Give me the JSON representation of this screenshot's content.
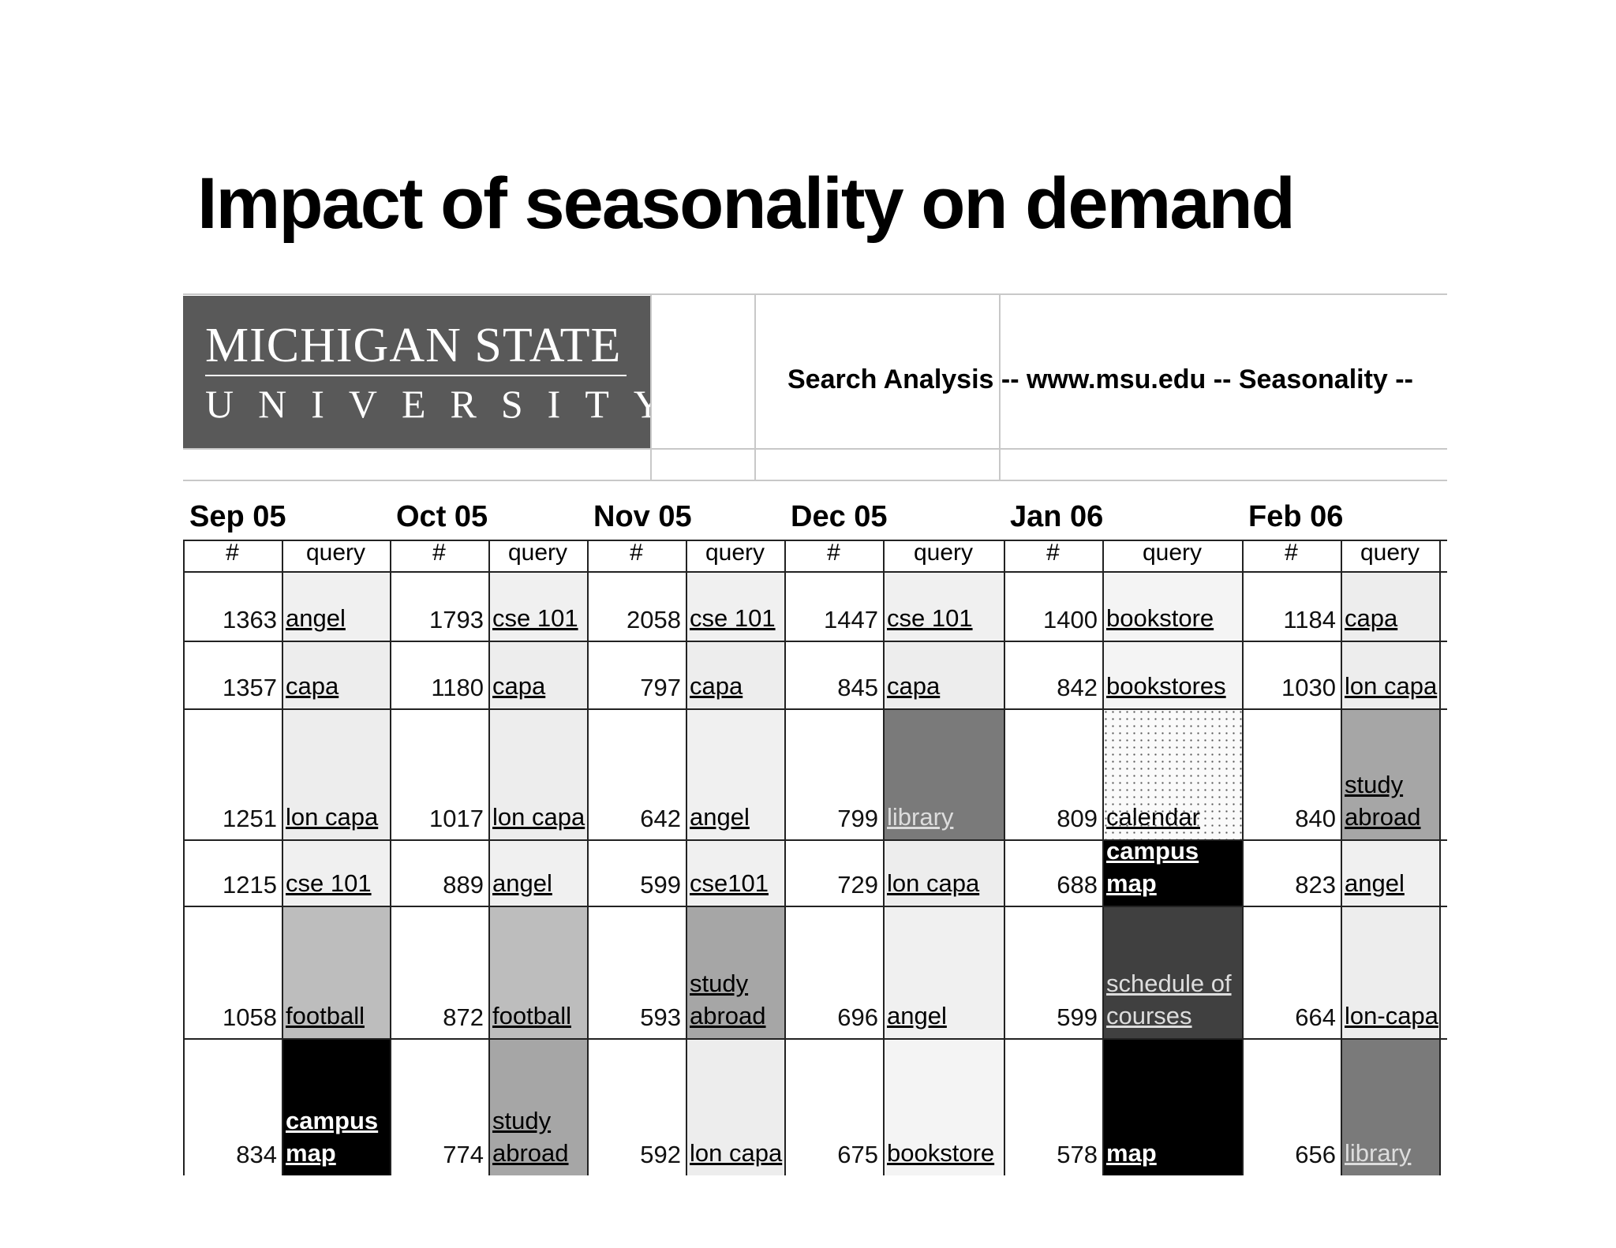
{
  "slide": {
    "title": "Impact of seasonality on demand"
  },
  "sheet": {
    "logo": {
      "line1": "MICHIGAN STATE",
      "line2": "UNIVERSITY"
    },
    "analysis_title": "Search Analysis -- www.msu.edu -- Seasonality --",
    "months": [
      "Sep  05",
      "Oct 05",
      "Nov 05",
      "Dec 05",
      "Jan 06",
      "Feb 06"
    ],
    "col_num_label": "#",
    "col_query_label": "query",
    "rows": [
      [
        {
          "n": "1363",
          "q": "angel",
          "fill": "#f0f0f0"
        },
        {
          "n": "1793",
          "q": "cse 101",
          "fill": "#f0f0f0"
        },
        {
          "n": "2058",
          "q": "cse 101",
          "fill": "#f0f0f0"
        },
        {
          "n": "1447",
          "q": "cse 101",
          "fill": "#f0f0f0"
        },
        {
          "n": "1400",
          "q": "bookstore",
          "fill": "#f4f4f4"
        },
        {
          "n": "1184",
          "q": "capa",
          "fill": "#ededed"
        }
      ],
      [
        {
          "n": "1357",
          "q": "capa",
          "fill": "#ededed"
        },
        {
          "n": "1180",
          "q": "capa",
          "fill": "#ededed"
        },
        {
          "n": "797",
          "q": "capa",
          "fill": "#ededed"
        },
        {
          "n": "845",
          "q": "capa",
          "fill": "#ededed"
        },
        {
          "n": "842",
          "q": "bookstores",
          "fill": "#f4f4f4"
        },
        {
          "n": "1030",
          "q": "lon capa",
          "fill": "#ededed"
        }
      ],
      [
        {
          "n": "1251",
          "q": "lon capa",
          "fill": "#ededed"
        },
        {
          "n": "1017",
          "q": "lon capa",
          "fill": "#ededed"
        },
        {
          "n": "642",
          "q": "angel",
          "fill": "#f0f0f0"
        },
        {
          "n": "799",
          "q": "library",
          "fill": "#7a7a7a",
          "style": "mid"
        },
        {
          "n": "809",
          "q": "calendar",
          "fill": "dots"
        },
        {
          "n": "840",
          "q": "study abroad",
          "fill": "#a6a6a6"
        }
      ],
      [
        {
          "n": "1215",
          "q": "cse 101",
          "fill": "#f0f0f0"
        },
        {
          "n": "889",
          "q": "angel",
          "fill": "#f0f0f0"
        },
        {
          "n": "599",
          "q": "cse101",
          "fill": "#f0f0f0"
        },
        {
          "n": "729",
          "q": "lon capa",
          "fill": "#ededed"
        },
        {
          "n": "688",
          "q": "campus map",
          "fill": "#000000",
          "style": "dark"
        },
        {
          "n": "823",
          "q": "angel",
          "fill": "#f0f0f0"
        }
      ],
      [
        {
          "n": "1058",
          "q": "football",
          "fill": "#bdbdbd"
        },
        {
          "n": "872",
          "q": "football",
          "fill": "#bdbdbd"
        },
        {
          "n": "593",
          "q": "study abroad",
          "fill": "#a6a6a6"
        },
        {
          "n": "696",
          "q": "angel",
          "fill": "#f0f0f0"
        },
        {
          "n": "599",
          "q": "schedule of courses",
          "fill": "#404040",
          "style": "mid"
        },
        {
          "n": "664",
          "q": "lon-capa",
          "fill": "#ededed"
        }
      ],
      [
        {
          "n": "834",
          "q": "campus map",
          "fill": "#000000",
          "style": "dark"
        },
        {
          "n": "774",
          "q": "study abroad",
          "fill": "#a6a6a6"
        },
        {
          "n": "592",
          "q": "lon capa",
          "fill": "#ededed"
        },
        {
          "n": "675",
          "q": "bookstore",
          "fill": "#f4f4f4"
        },
        {
          "n": "578",
          "q": "map",
          "fill": "#000000",
          "style": "dark"
        },
        {
          "n": "656",
          "q": "library",
          "fill": "#7a7a7a",
          "style": "mid"
        }
      ]
    ]
  }
}
